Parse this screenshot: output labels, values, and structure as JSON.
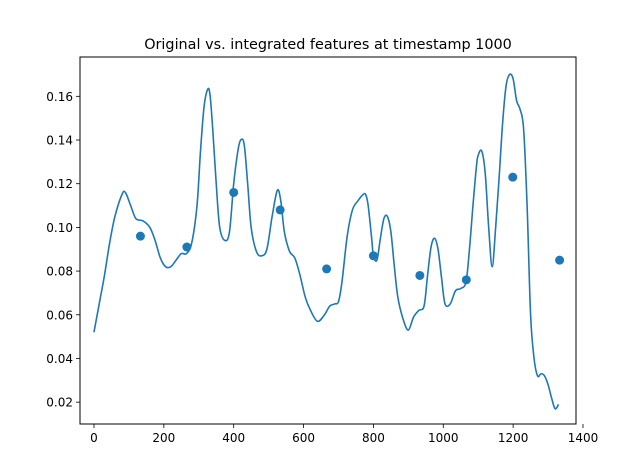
{
  "chart_data": {
    "type": "line",
    "title": "Original vs. integrated features at timestamp 1000",
    "xlabel": "",
    "ylabel": "",
    "xlim": [
      -40,
      1380
    ],
    "ylim": [
      0.01,
      0.178
    ],
    "xticks": [
      0,
      200,
      400,
      600,
      800,
      1000,
      1200,
      1400
    ],
    "yticks": [
      0.02,
      0.04,
      0.06,
      0.08,
      0.1,
      0.12,
      0.14,
      0.16
    ],
    "ytick_labels": [
      "0.02",
      "0.04",
      "0.06",
      "0.08",
      "0.10",
      "0.12",
      "0.14",
      "0.16"
    ],
    "grid": false,
    "color": "#1f77b4",
    "series": [
      {
        "kind": "line",
        "x": [
          0,
          15,
          30,
          45,
          60,
          80,
          90,
          105,
          120,
          140,
          160,
          175,
          190,
          205,
          220,
          235,
          250,
          265,
          280,
          295,
          305,
          315,
          325,
          332,
          340,
          350,
          360,
          375,
          388,
          400,
          412,
          420,
          430,
          440,
          450,
          465,
          480,
          495,
          510,
          525,
          535,
          545,
          560,
          575,
          590,
          605,
          620,
          640,
          660,
          675,
          690,
          700,
          710,
          725,
          740,
          755,
          770,
          778,
          785,
          795,
          800,
          810,
          820,
          830,
          840,
          850,
          860,
          870,
          885,
          900,
          915,
          930,
          945,
          955,
          965,
          975,
          985,
          995,
          1005,
          1020,
          1035,
          1050,
          1065,
          1075,
          1085,
          1095,
          1100,
          1110,
          1120,
          1130,
          1140,
          1150,
          1160,
          1170,
          1180,
          1190,
          1200,
          1210,
          1220,
          1230,
          1240,
          1250,
          1260,
          1270,
          1280,
          1290,
          1300,
          1310,
          1320,
          1330
        ],
        "y": [
          0.052,
          0.065,
          0.078,
          0.093,
          0.105,
          0.115,
          0.116,
          0.11,
          0.104,
          0.103,
          0.1,
          0.094,
          0.086,
          0.082,
          0.082,
          0.085,
          0.088,
          0.088,
          0.093,
          0.11,
          0.135,
          0.155,
          0.163,
          0.161,
          0.145,
          0.12,
          0.1,
          0.094,
          0.098,
          0.12,
          0.135,
          0.14,
          0.138,
          0.12,
          0.1,
          0.089,
          0.087,
          0.09,
          0.105,
          0.117,
          0.112,
          0.098,
          0.089,
          0.086,
          0.078,
          0.068,
          0.062,
          0.057,
          0.06,
          0.064,
          0.065,
          0.066,
          0.075,
          0.096,
          0.108,
          0.112,
          0.115,
          0.115,
          0.11,
          0.095,
          0.087,
          0.085,
          0.095,
          0.104,
          0.105,
          0.098,
          0.082,
          0.068,
          0.058,
          0.053,
          0.059,
          0.062,
          0.064,
          0.078,
          0.091,
          0.095,
          0.09,
          0.077,
          0.065,
          0.065,
          0.071,
          0.072,
          0.075,
          0.09,
          0.11,
          0.128,
          0.133,
          0.135,
          0.125,
          0.1,
          0.082,
          0.1,
          0.123,
          0.148,
          0.165,
          0.17,
          0.168,
          0.158,
          0.154,
          0.145,
          0.11,
          0.06,
          0.04,
          0.032,
          0.033,
          0.032,
          0.028,
          0.022,
          0.017,
          0.019
        ]
      },
      {
        "kind": "scatter",
        "x": [
          133,
          266,
          400,
          533,
          666,
          800,
          933,
          1066,
          1199,
          1333
        ],
        "y": [
          0.096,
          0.091,
          0.116,
          0.108,
          0.081,
          0.087,
          0.078,
          0.076,
          0.123,
          0.085
        ]
      }
    ]
  }
}
